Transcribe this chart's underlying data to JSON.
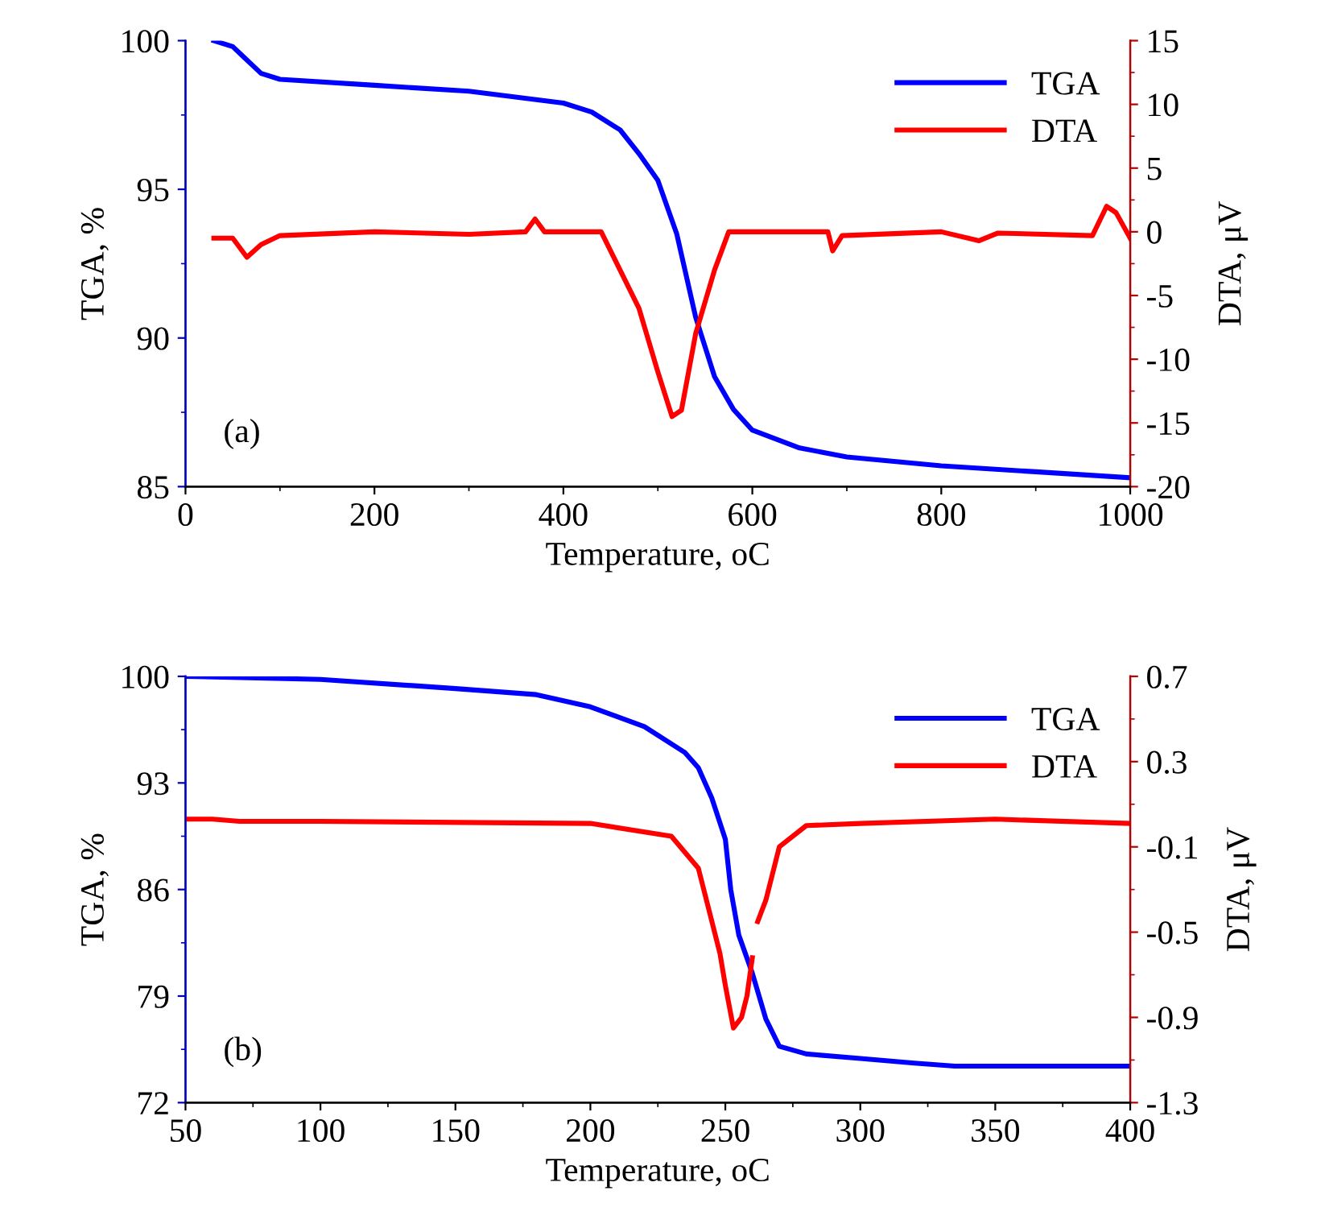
{
  "chart_data": [
    {
      "type": "line",
      "xlabel": "Temperature, oC",
      "ylabel": "TGA, %",
      "y2label": "DTA, μV",
      "xlim": [
        0,
        1000
      ],
      "xticks": [
        0,
        200,
        400,
        600,
        800,
        1000
      ],
      "ylim": [
        85,
        100
      ],
      "yticks": [
        85,
        90,
        95,
        100
      ],
      "y2lim": [
        -20,
        15
      ],
      "y2ticks": [
        -20,
        -15,
        -10,
        -5,
        0,
        5,
        10,
        15
      ],
      "legend": "top right",
      "grid": false,
      "annotations": [
        "(a)"
      ],
      "series": [
        {
          "name": "TGA",
          "color": "#0000ff",
          "x": [
            30,
            50,
            60,
            80,
            100,
            200,
            300,
            400,
            430,
            460,
            480,
            500,
            520,
            540,
            560,
            580,
            600,
            650,
            700,
            800,
            900,
            1000
          ],
          "values": [
            100,
            99.8,
            99.5,
            98.9,
            98.7,
            98.5,
            98.3,
            97.9,
            97.6,
            97.0,
            96.2,
            95.3,
            93.5,
            90.7,
            88.7,
            87.6,
            86.9,
            86.3,
            86.0,
            85.7,
            85.5,
            85.3
          ]
        },
        {
          "name": "DTA",
          "color": "#ff0000",
          "axis": "y2",
          "x": [
            30,
            50,
            65,
            80,
            100,
            200,
            300,
            360,
            370,
            380,
            440,
            460,
            480,
            500,
            515,
            525,
            540,
            560,
            575,
            600,
            680,
            685,
            695,
            800,
            840,
            860,
            960,
            975,
            985,
            1000
          ],
          "values": [
            -0.5,
            -0.5,
            -2,
            -1,
            -0.3,
            0,
            -0.2,
            0,
            1,
            0,
            0,
            -3,
            -6,
            -11,
            -14.5,
            -14,
            -8,
            -3,
            0,
            0,
            0,
            -1.5,
            -0.3,
            0,
            -0.7,
            -0.1,
            -0.3,
            2,
            1.5,
            -0.5
          ]
        }
      ]
    },
    {
      "type": "line",
      "xlabel": "Temperature, oC",
      "ylabel": "TGA, %",
      "y2label": "DTA, μV",
      "xlim": [
        50,
        400
      ],
      "xticks": [
        50,
        100,
        150,
        200,
        250,
        300,
        350,
        400
      ],
      "ylim": [
        72,
        100
      ],
      "yticks": [
        72,
        79,
        86,
        93,
        100
      ],
      "y2lim": [
        -1.3,
        0.7
      ],
      "y2ticks": [
        -1.3,
        -0.9,
        -0.5,
        -0.1,
        0.3,
        0.7
      ],
      "legend": "top right",
      "grid": false,
      "annotations": [
        "(b)"
      ],
      "series": [
        {
          "name": "TGA",
          "color": "#0000ff",
          "x": [
            50,
            100,
            150,
            180,
            200,
            220,
            235,
            240,
            245,
            250,
            252,
            255,
            260,
            265,
            270,
            280,
            300,
            320,
            335,
            400
          ],
          "values": [
            100,
            99.8,
            99.2,
            98.8,
            98.0,
            96.7,
            95.0,
            94.0,
            92,
            89.3,
            86,
            83,
            80.5,
            77.5,
            75.7,
            75.2,
            74.9,
            74.6,
            74.4,
            74.4
          ]
        },
        {
          "name": "DTA",
          "color": "#ff0000",
          "axis": "y2",
          "x": [
            50,
            60,
            70,
            100,
            200,
            230,
            240,
            245,
            248,
            250,
            253,
            256,
            258,
            260,
            261,
            262,
            265,
            268,
            270,
            280,
            300,
            350,
            400
          ],
          "values": [
            0.03,
            0.03,
            0.02,
            0.02,
            0.01,
            -0.05,
            -0.2,
            -0.45,
            -0.6,
            -0.75,
            -0.95,
            -0.9,
            -0.8,
            -0.62,
            null,
            -0.45,
            -0.35,
            -0.2,
            -0.1,
            0.0,
            0.01,
            0.03,
            0.01
          ]
        }
      ]
    }
  ]
}
